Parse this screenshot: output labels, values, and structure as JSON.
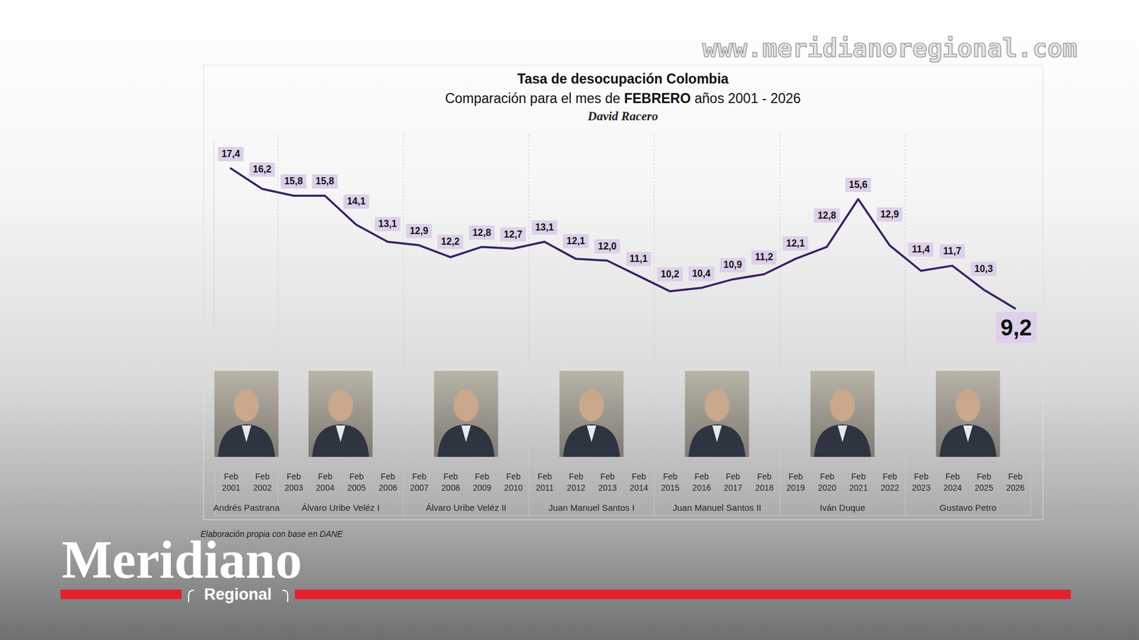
{
  "chart_data": {
    "type": "line",
    "title": "Tasa de desocupación Colombia",
    "subtitle": "Comparación para el mes de FEBRERO años 2001 - 2026",
    "author": "David Racero",
    "source": "Elaboración propia con base en DANE",
    "categories": [
      "Feb 2001",
      "Feb 2002",
      "Feb 2003",
      "Feb 2004",
      "Feb 2005",
      "Feb 2006",
      "Feb 2007",
      "Feb 2008",
      "Feb 2009",
      "Feb 2010",
      "Feb 2011",
      "Feb 2012",
      "Feb 2013",
      "Feb 2014",
      "Feb 2015",
      "Feb 2016",
      "Feb 2017",
      "Feb 2018",
      "Feb 2019",
      "Feb 2020",
      "Feb 2021",
      "Feb 2022",
      "Feb 2023",
      "Feb 2024",
      "Feb 2025",
      "Feb 2026"
    ],
    "values": [
      17.4,
      16.2,
      15.8,
      15.8,
      14.1,
      13.1,
      12.9,
      12.2,
      12.8,
      12.7,
      13.1,
      12.1,
      12.0,
      11.1,
      10.2,
      10.4,
      10.9,
      11.2,
      12.1,
      12.8,
      15.6,
      12.9,
      11.4,
      11.7,
      10.3,
      9.2
    ],
    "value_labels": [
      "17,4",
      "16,2",
      "15,8",
      "15,8",
      "14,1",
      "13,1",
      "12,9",
      "12,2",
      "12,8",
      "12,7",
      "13,1",
      "12,1",
      "12,0",
      "11,1",
      "10,2",
      "10,4",
      "10,9",
      "11,2",
      "12,1",
      "12,8",
      "15,6",
      "12,9",
      "11,4",
      "11,7",
      "10,3",
      "9,2"
    ],
    "color": "#3a1f6b",
    "ylim": [
      8,
      19
    ],
    "yticks": [],
    "tick_labels": "x",
    "data_labels": true,
    "grid": false,
    "groups": [
      {
        "label": "Andrés Pastrana",
        "size": 2
      },
      {
        "label": "Álvaro Uribe Veléz I",
        "size": 4
      },
      {
        "label": "Álvaro Uribe Veléz II",
        "size": 4
      },
      {
        "label": "Juan Manuel Santos I",
        "size": 4
      },
      {
        "label": "Juan Manuel Santos II",
        "size": 4
      },
      {
        "label": "Iván Duque",
        "size": 4
      },
      {
        "label": "Gustavo Petro",
        "size": 4
      }
    ]
  },
  "page": {
    "website": "www.meridianoregional.com",
    "logo": "Meridiano",
    "logo_sub": "Regional"
  }
}
